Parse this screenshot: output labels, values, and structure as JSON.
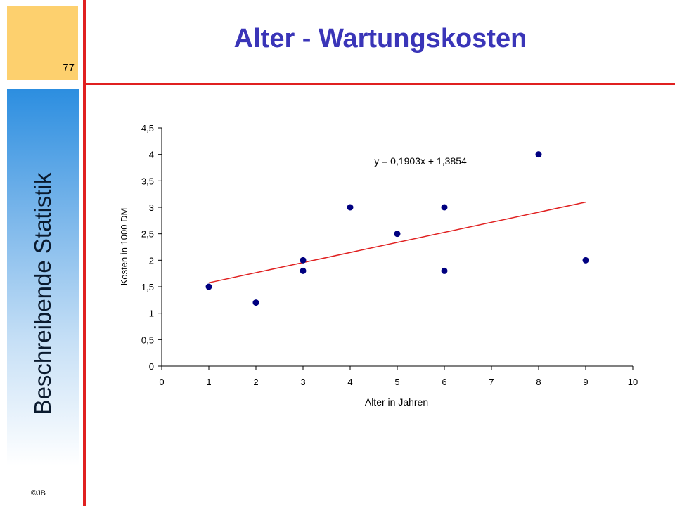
{
  "slide": {
    "title": "Alter - Wartungskosten",
    "page_number": "77",
    "side_title": "Beschreibende Statistik",
    "copyright": "©JB"
  },
  "colors": {
    "title": "#3a35b8",
    "accent_line": "#e02020",
    "corner_box": "#fdd06e",
    "marker": "#000080",
    "trendline": "#e02020"
  },
  "chart_data": {
    "type": "scatter",
    "xlabel": "Alter in Jahren",
    "ylabel": "Kosten in 1000 DM",
    "xlim": [
      0,
      10
    ],
    "ylim": [
      0,
      4.5
    ],
    "x_ticks": [
      "0",
      "1",
      "2",
      "3",
      "4",
      "5",
      "6",
      "7",
      "8",
      "9",
      "10"
    ],
    "y_ticks": [
      "0",
      "0,5",
      "1",
      "1,5",
      "2",
      "2,5",
      "3",
      "3,5",
      "4",
      "4,5"
    ],
    "grid": false,
    "points": [
      {
        "x": 1,
        "y": 1.5
      },
      {
        "x": 2,
        "y": 1.2
      },
      {
        "x": 3,
        "y": 2.0
      },
      {
        "x": 3,
        "y": 1.8
      },
      {
        "x": 4,
        "y": 3.0
      },
      {
        "x": 5,
        "y": 2.5
      },
      {
        "x": 6,
        "y": 3.0
      },
      {
        "x": 6,
        "y": 1.8
      },
      {
        "x": 8,
        "y": 4.0
      },
      {
        "x": 9,
        "y": 2.0
      }
    ],
    "trendline": {
      "slope": 0.1903,
      "intercept": 1.3854,
      "x_range": [
        1,
        9
      ],
      "label": "y = 0,1903x + 1,3854"
    }
  }
}
